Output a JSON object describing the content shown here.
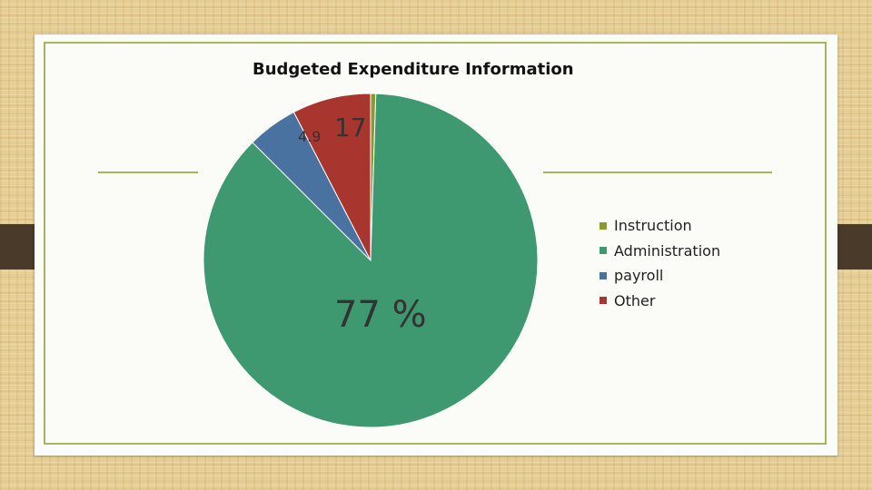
{
  "chart_data": {
    "type": "pie",
    "title": "Budgeted Expenditure Information",
    "series": [
      {
        "name": "Instruction",
        "value": 0.5,
        "color": "#8a9a2e"
      },
      {
        "name": "Administration",
        "value": 87.0,
        "color": "#3e9870"
      },
      {
        "name": "payroll",
        "value": 4.9,
        "color": "#4a72a0"
      },
      {
        "name": "Other",
        "value": 7.6,
        "color": "#a8352e"
      }
    ],
    "data_labels": [
      "4.9",
      "17",
      "77 %"
    ],
    "legend_position": "right"
  }
}
